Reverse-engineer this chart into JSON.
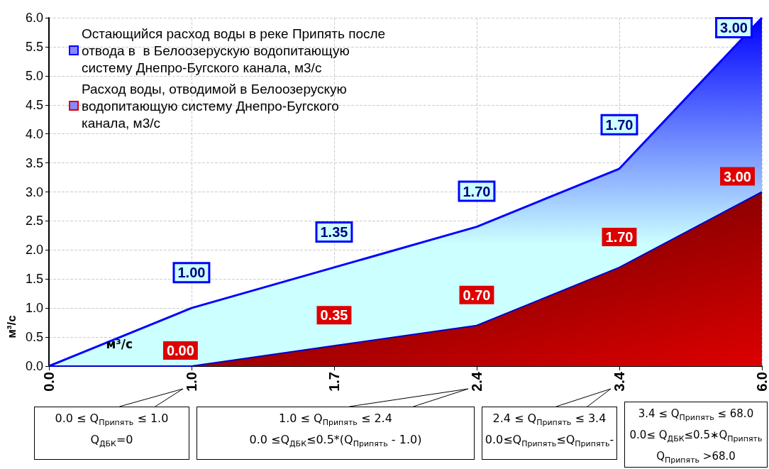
{
  "chart_data": {
    "type": "area",
    "stacked": true,
    "ylabel": "м³/с",
    "categories": [
      "0.0",
      "1.0",
      "1.7",
      "2.4",
      "3.4",
      "6.0"
    ],
    "series": [
      {
        "name": "Расход воды, отводимой в Белоозерускую водопитающую систему Днепро-Бугского канала, м3/с",
        "color": "#dd0000",
        "values": [
          0,
          0,
          0.35,
          0.7,
          1.7,
          3.0
        ],
        "value_labels": [
          null,
          "0.00",
          "0.35",
          "0.70",
          "1.70",
          "3.00"
        ]
      },
      {
        "name": "Остающийся расход воды в реке Припять после отвода в  в Белоозерускую водопитающую систему Днепро-Бугского канала, м3/с",
        "color": "#0000ff",
        "values": [
          0,
          1.0,
          1.35,
          1.7,
          1.7,
          3.0
        ],
        "value_labels": [
          null,
          "1.00",
          "1.35",
          "1.70",
          "1.70",
          "3.00"
        ]
      }
    ],
    "ylim": [
      0,
      6
    ],
    "yticks": [
      {
        "value": 0,
        "label": "0.0"
      },
      {
        "value": 0.5,
        "label": "0.5"
      },
      {
        "value": 1,
        "label": "1.0"
      },
      {
        "value": 1.5,
        "label": "1.5"
      },
      {
        "value": 2,
        "label": "2.0"
      },
      {
        "value": 2.5,
        "label": "2.5"
      },
      {
        "value": 3,
        "label": "3.0"
      },
      {
        "value": 3.5,
        "label": "3.5"
      },
      {
        "value": 4,
        "label": "4.0"
      },
      {
        "value": 4.5,
        "label": "4.5"
      },
      {
        "value": 5,
        "label": "5.0"
      },
      {
        "value": 5.5,
        "label": "5.5"
      },
      {
        "value": 6,
        "label": "6.0"
      }
    ],
    "grid": true,
    "legend": "top left",
    "marker": "none",
    "line_style": "solid",
    "annotations": [
      "м³/с",
      "0.0 ≤ Q$_{Припять}$ ≤ 1.0\nQ$_{ДБК}$=0",
      "1.0 ≤ Q$_{Припять}$ ≤ 2.4\n0.0  ≤Q$_{ДБК}$≤0.5*(Q$_{Припять}$ - 1.0)",
      "2.4 ≤ Q$_{Припять}$ ≤ 3.4\n0.0≤Q$_{Припять}$≤Q$_{Припять}$-",
      "3.4 ≤ Q$_{Припять}$ ≤ 68.0\n0.0≤ Q$_{ДБК}$≤0.5∗Q$_{Припять}$\nQ$_{Припять}$ >68.0"
    ]
  }
}
